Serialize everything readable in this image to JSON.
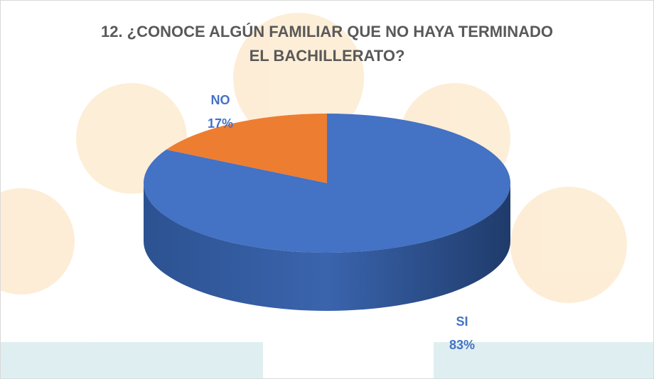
{
  "chart_data": {
    "type": "pie",
    "title": "12. ¿CONOCE ALGÚN FAMILIAR QUE NO HAYA TERMINADO EL BACHILLERATO?",
    "categories": [
      "SI",
      "NO"
    ],
    "values": [
      83,
      17
    ],
    "value_labels": [
      "83%",
      "17%"
    ],
    "colors": [
      "#4472c4",
      "#ed7d31"
    ],
    "three_d": true
  }
}
